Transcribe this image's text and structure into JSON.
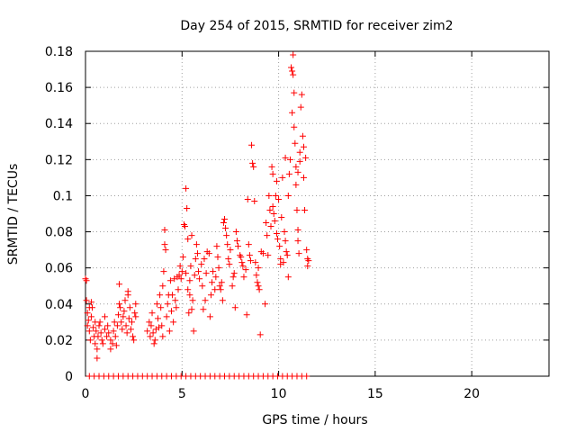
{
  "chart_data": {
    "type": "scatter",
    "title": "Day 254 of 2015, SRMTID for receiver zim2",
    "xlabel": "GPS time / hours",
    "ylabel": "SRMTID / TECUs",
    "xlim": [
      0,
      24
    ],
    "ylim": [
      0,
      0.18
    ],
    "xticks": [
      0,
      5,
      10,
      15,
      20
    ],
    "yticks": [
      0,
      0.02,
      0.04,
      0.06,
      0.08,
      0.1,
      0.12,
      0.14,
      0.16,
      0.18
    ],
    "xtick_labels": [
      "0",
      "5",
      "10",
      "15",
      "20"
    ],
    "ytick_labels": [
      "0",
      "0.02",
      "0.04",
      "0.06",
      "0.08",
      "0.1",
      "0.12",
      "0.14",
      "0.16",
      "0.18"
    ],
    "grid": true,
    "marker": "+",
    "series": [
      {
        "name": "SRMTID",
        "color": "#ff0000",
        "points": [
          [
            0.0,
            0.054
          ],
          [
            0.05,
            0.053
          ],
          [
            0.05,
            0.042
          ],
          [
            0.1,
            0.035
          ],
          [
            0.1,
            0.028
          ],
          [
            0.15,
            0.031
          ],
          [
            0.2,
            0.038
          ],
          [
            0.2,
            0.025
          ],
          [
            0.25,
            0.02
          ],
          [
            0.3,
            0.033
          ],
          [
            0.3,
            0.041
          ],
          [
            0.35,
            0.038
          ],
          [
            0.4,
            0.027
          ],
          [
            0.45,
            0.022
          ],
          [
            0.5,
            0.018
          ],
          [
            0.5,
            0.03
          ],
          [
            0.55,
            0.025
          ],
          [
            0.6,
            0.015
          ],
          [
            0.6,
            0.01
          ],
          [
            0.65,
            0.022
          ],
          [
            0.7,
            0.028
          ],
          [
            0.75,
            0.03
          ],
          [
            0.8,
            0.024
          ],
          [
            0.85,
            0.02
          ],
          [
            0.9,
            0.018
          ],
          [
            1.0,
            0.026
          ],
          [
            1.0,
            0.033
          ],
          [
            1.1,
            0.022
          ],
          [
            1.15,
            0.028
          ],
          [
            1.2,
            0.024
          ],
          [
            1.3,
            0.02
          ],
          [
            1.3,
            0.015
          ],
          [
            1.4,
            0.018
          ],
          [
            1.45,
            0.025
          ],
          [
            1.5,
            0.03
          ],
          [
            1.55,
            0.022
          ],
          [
            1.6,
            0.017
          ],
          [
            1.65,
            0.028
          ],
          [
            1.7,
            0.034
          ],
          [
            1.75,
            0.04
          ],
          [
            1.75,
            0.051
          ],
          [
            1.8,
            0.038
          ],
          [
            1.85,
            0.03
          ],
          [
            1.9,
            0.026
          ],
          [
            1.95,
            0.033
          ],
          [
            2.0,
            0.036
          ],
          [
            2.05,
            0.042
          ],
          [
            2.1,
            0.028
          ],
          [
            2.15,
            0.024
          ],
          [
            2.2,
            0.045
          ],
          [
            2.2,
            0.047
          ],
          [
            2.25,
            0.032
          ],
          [
            2.3,
            0.038
          ],
          [
            2.35,
            0.026
          ],
          [
            2.4,
            0.03
          ],
          [
            2.45,
            0.022
          ],
          [
            2.5,
            0.02
          ],
          [
            2.55,
            0.035
          ],
          [
            2.6,
            0.04
          ],
          [
            2.6,
            0.033
          ],
          [
            3.2,
            0.025
          ],
          [
            3.3,
            0.03
          ],
          [
            3.35,
            0.022
          ],
          [
            3.4,
            0.028
          ],
          [
            3.45,
            0.035
          ],
          [
            3.5,
            0.024
          ],
          [
            3.55,
            0.018
          ],
          [
            3.6,
            0.02
          ],
          [
            3.65,
            0.026
          ],
          [
            3.7,
            0.04
          ],
          [
            3.75,
            0.032
          ],
          [
            3.8,
            0.027
          ],
          [
            3.85,
            0.045
          ],
          [
            3.9,
            0.038
          ],
          [
            3.95,
            0.028
          ],
          [
            4.0,
            0.022
          ],
          [
            4.0,
            0.05
          ],
          [
            4.05,
            0.058
          ],
          [
            4.1,
            0.081
          ],
          [
            4.1,
            0.073
          ],
          [
            4.15,
            0.07
          ],
          [
            4.2,
            0.033
          ],
          [
            4.25,
            0.04
          ],
          [
            4.3,
            0.045
          ],
          [
            4.35,
            0.025
          ],
          [
            4.4,
            0.053
          ],
          [
            4.45,
            0.036
          ],
          [
            4.5,
            0.045
          ],
          [
            4.55,
            0.03
          ],
          [
            4.6,
            0.054
          ],
          [
            4.65,
            0.042
          ],
          [
            4.7,
            0.038
          ],
          [
            4.75,
            0.055
          ],
          [
            4.8,
            0.048
          ],
          [
            4.85,
            0.056
          ],
          [
            4.9,
            0.061
          ],
          [
            4.95,
            0.054
          ],
          [
            5.0,
            0.058
          ],
          [
            5.05,
            0.066
          ],
          [
            5.1,
            0.084
          ],
          [
            5.15,
            0.083
          ],
          [
            5.2,
            0.057
          ],
          [
            5.2,
            0.104
          ],
          [
            5.25,
            0.093
          ],
          [
            5.3,
            0.076
          ],
          [
            5.3,
            0.048
          ],
          [
            5.35,
            0.035
          ],
          [
            5.4,
            0.053
          ],
          [
            5.4,
            0.045
          ],
          [
            5.45,
            0.061
          ],
          [
            5.5,
            0.078
          ],
          [
            5.5,
            0.037
          ],
          [
            5.55,
            0.042
          ],
          [
            5.6,
            0.025
          ],
          [
            5.65,
            0.056
          ],
          [
            5.7,
            0.065
          ],
          [
            5.75,
            0.073
          ],
          [
            5.8,
            0.068
          ],
          [
            5.85,
            0.058
          ],
          [
            5.9,
            0.054
          ],
          [
            6.0,
            0.062
          ],
          [
            6.05,
            0.05
          ],
          [
            6.1,
            0.037
          ],
          [
            6.2,
            0.042
          ],
          [
            6.25,
            0.057
          ],
          [
            6.3,
            0.069
          ],
          [
            6.4,
            0.068
          ],
          [
            6.45,
            0.033
          ],
          [
            6.5,
            0.045
          ],
          [
            6.55,
            0.052
          ],
          [
            6.6,
            0.058
          ],
          [
            6.7,
            0.048
          ],
          [
            6.75,
            0.055
          ],
          [
            6.8,
            0.072
          ],
          [
            6.85,
            0.066
          ],
          [
            6.9,
            0.06
          ],
          [
            6.95,
            0.05
          ],
          [
            7.0,
            0.048
          ],
          [
            7.05,
            0.052
          ],
          [
            7.1,
            0.042
          ],
          [
            7.15,
            0.085
          ],
          [
            7.2,
            0.087
          ],
          [
            7.25,
            0.082
          ],
          [
            7.3,
            0.078
          ],
          [
            7.35,
            0.073
          ],
          [
            7.4,
            0.065
          ],
          [
            7.45,
            0.062
          ],
          [
            7.5,
            0.07
          ],
          [
            7.6,
            0.05
          ],
          [
            7.65,
            0.055
          ],
          [
            7.7,
            0.057
          ],
          [
            7.75,
            0.038
          ],
          [
            7.8,
            0.08
          ],
          [
            7.85,
            0.075
          ],
          [
            7.9,
            0.072
          ],
          [
            8.0,
            0.067
          ],
          [
            8.05,
            0.066
          ],
          [
            8.1,
            0.063
          ],
          [
            8.15,
            0.061
          ],
          [
            8.2,
            0.055
          ],
          [
            8.3,
            0.059
          ],
          [
            8.35,
            0.034
          ],
          [
            8.4,
            0.098
          ],
          [
            8.45,
            0.073
          ],
          [
            8.5,
            0.067
          ],
          [
            8.55,
            0.064
          ],
          [
            8.6,
            0.128
          ],
          [
            8.65,
            0.118
          ],
          [
            8.7,
            0.116
          ],
          [
            8.75,
            0.097
          ],
          [
            8.8,
            0.063
          ],
          [
            8.85,
            0.056
          ],
          [
            8.9,
            0.052
          ],
          [
            8.95,
            0.05
          ],
          [
            9.0,
            0.048
          ],
          [
            9.05,
            0.023
          ],
          [
            9.1,
            0.069
          ],
          [
            9.2,
            0.068
          ],
          [
            9.3,
            0.04
          ],
          [
            9.35,
            0.085
          ],
          [
            9.4,
            0.078
          ],
          [
            9.5,
            0.1
          ],
          [
            9.55,
            0.092
          ],
          [
            9.6,
            0.083
          ],
          [
            9.65,
            0.116
          ],
          [
            9.7,
            0.112
          ],
          [
            9.7,
            0.094
          ],
          [
            9.75,
            0.09
          ],
          [
            9.8,
            0.086
          ],
          [
            9.85,
            0.1
          ],
          [
            9.9,
            0.108
          ],
          [
            9.9,
            0.079
          ],
          [
            9.95,
            0.076
          ],
          [
            10.0,
            0.098
          ],
          [
            10.05,
            0.072
          ],
          [
            10.1,
            0.065
          ],
          [
            10.1,
            0.062
          ],
          [
            10.15,
            0.088
          ],
          [
            10.2,
            0.11
          ],
          [
            10.25,
            0.063
          ],
          [
            10.3,
            0.08
          ],
          [
            10.35,
            0.075
          ],
          [
            10.4,
            0.069
          ],
          [
            10.45,
            0.067
          ],
          [
            10.5,
            0.1
          ],
          [
            10.5,
            0.055
          ],
          [
            10.55,
            0.112
          ],
          [
            10.6,
            0.12
          ],
          [
            10.65,
            0.171
          ],
          [
            10.7,
            0.169
          ],
          [
            10.7,
            0.146
          ],
          [
            10.75,
            0.167
          ],
          [
            10.75,
            0.178
          ],
          [
            10.8,
            0.157
          ],
          [
            10.8,
            0.138
          ],
          [
            10.85,
            0.129
          ],
          [
            10.9,
            0.116
          ],
          [
            10.9,
            0.106
          ],
          [
            10.95,
            0.092
          ],
          [
            11.0,
            0.081
          ],
          [
            11.0,
            0.075
          ],
          [
            11.05,
            0.068
          ],
          [
            11.1,
            0.124
          ],
          [
            11.1,
            0.119
          ],
          [
            11.15,
            0.149
          ],
          [
            11.2,
            0.156
          ],
          [
            11.25,
            0.133
          ],
          [
            11.3,
            0.127
          ],
          [
            11.3,
            0.11
          ],
          [
            11.35,
            0.092
          ],
          [
            11.4,
            0.121
          ],
          [
            11.45,
            0.07
          ],
          [
            11.5,
            0.065
          ],
          [
            11.5,
            0.061
          ],
          [
            11.55,
            0.064
          ],
          [
            11.0,
            0.113
          ],
          [
            10.35,
            0.121
          ],
          [
            9.45,
            0.067
          ],
          [
            8.95,
            0.06
          ],
          [
            6.15,
            0.065
          ],
          [
            0.2,
            0.0
          ],
          [
            0.45,
            0.0
          ],
          [
            0.7,
            0.0
          ],
          [
            0.95,
            0.0
          ],
          [
            1.2,
            0.0
          ],
          [
            1.45,
            0.0
          ],
          [
            1.7,
            0.0
          ],
          [
            1.95,
            0.0
          ],
          [
            2.2,
            0.0
          ],
          [
            2.45,
            0.0
          ],
          [
            2.7,
            0.0
          ],
          [
            2.95,
            0.0
          ],
          [
            3.2,
            0.0
          ],
          [
            3.45,
            0.0
          ],
          [
            3.7,
            0.0
          ],
          [
            3.95,
            0.0
          ],
          [
            4.2,
            0.0
          ],
          [
            4.45,
            0.0
          ],
          [
            4.7,
            0.0
          ],
          [
            4.95,
            0.0
          ],
          [
            5.2,
            0.0
          ],
          [
            5.45,
            0.0
          ],
          [
            5.7,
            0.0
          ],
          [
            5.95,
            0.0
          ],
          [
            6.2,
            0.0
          ],
          [
            6.45,
            0.0
          ],
          [
            6.7,
            0.0
          ],
          [
            6.95,
            0.0
          ],
          [
            7.2,
            0.0
          ],
          [
            7.45,
            0.0
          ],
          [
            7.7,
            0.0
          ],
          [
            7.95,
            0.0
          ],
          [
            8.2,
            0.0
          ],
          [
            8.45,
            0.0
          ],
          [
            8.7,
            0.0
          ],
          [
            8.95,
            0.0
          ],
          [
            9.2,
            0.0
          ],
          [
            9.45,
            0.0
          ],
          [
            9.7,
            0.0
          ],
          [
            9.95,
            0.0
          ],
          [
            10.2,
            0.0
          ],
          [
            10.45,
            0.0
          ],
          [
            10.7,
            0.0
          ],
          [
            10.95,
            0.0
          ],
          [
            11.2,
            0.0
          ],
          [
            11.45,
            0.0
          ]
        ]
      }
    ]
  }
}
